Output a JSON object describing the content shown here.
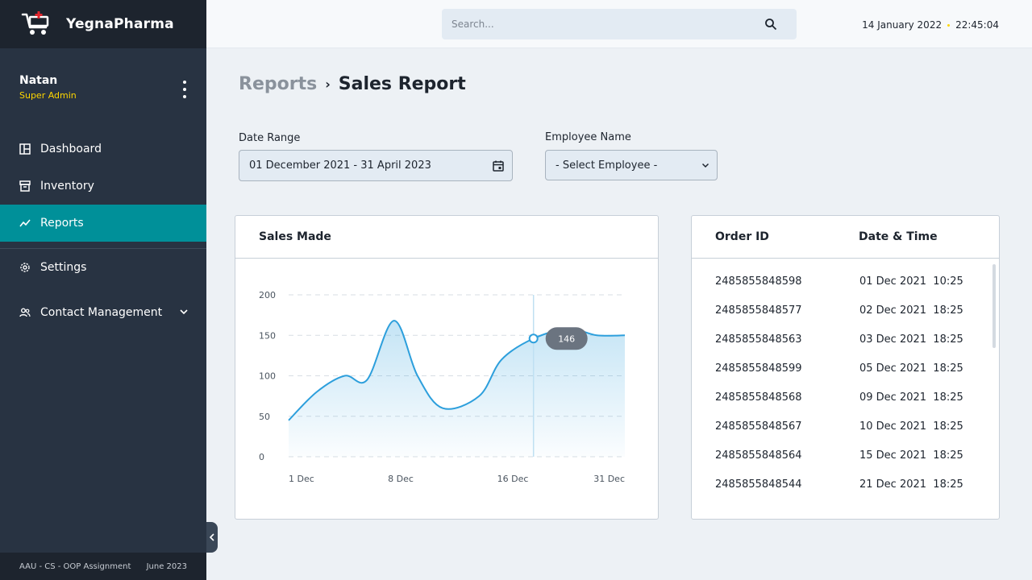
{
  "app": {
    "brand_name": "YegnaPharma",
    "accent_color": "#009099",
    "sidebar_bg": "#283342",
    "role_color": "#fed600"
  },
  "user": {
    "name": "Natan",
    "role": "Super Admin"
  },
  "sidebar": {
    "items": [
      {
        "label": "Dashboard",
        "icon": "dashboard-icon",
        "active": false
      },
      {
        "label": "Inventory",
        "icon": "inventory-icon",
        "active": false
      },
      {
        "label": "Reports",
        "icon": "reports-icon",
        "active": true
      },
      {
        "label": "Settings",
        "icon": "gear-icon",
        "active": false
      },
      {
        "label": "Contact Management",
        "icon": "users-icon",
        "active": false,
        "has_dropdown": true
      }
    ],
    "footer_left": "AAU - CS - OOP Assignment",
    "footer_right": "June 2023"
  },
  "topbar": {
    "search_placeholder": "Search...",
    "date": "14 January 2022",
    "time": "22:45:04"
  },
  "breadcrumb": {
    "parent": "Reports",
    "separator": "›",
    "current": "Sales Report"
  },
  "filters": {
    "date_range_label": "Date Range",
    "date_range_value": "01 December 2021 - 31 April 2023",
    "employee_label": "Employee Name",
    "employee_value": "- Select Employee -"
  },
  "chart_card": {
    "title": "Sales Made"
  },
  "chart_data": {
    "type": "area",
    "title": "Sales Made",
    "x_tick_labels": [
      "1 Dec",
      "8 Dec",
      "16 Dec",
      "31 Dec"
    ],
    "y_ticks": [
      0,
      50,
      100,
      150,
      200
    ],
    "ylim": [
      0,
      200
    ],
    "grid": true,
    "series": [
      {
        "x": [
          0,
          0.0833,
          0.1667,
          0.2333,
          0.3133,
          0.3833,
          0.4583,
          0.5667,
          0.6333,
          0.7283,
          0.8333,
          0.9167,
          1.0
        ],
        "values": [
          45,
          80,
          100,
          95,
          168,
          100,
          60,
          75,
          120,
          146,
          158,
          150,
          150
        ]
      }
    ],
    "highlight": {
      "x": 0.7283,
      "value": 146,
      "label": "146"
    },
    "line_color": "#2d9fdc"
  },
  "orders": {
    "headers": {
      "order_id": "Order ID",
      "date_time": "Date & Time"
    },
    "rows": [
      {
        "id": "2485855848598",
        "date": "01 Dec 2021",
        "time": "10:25"
      },
      {
        "id": "2485855848577",
        "date": "02 Dec 2021",
        "time": "18:25"
      },
      {
        "id": "2485855848563",
        "date": "03 Dec 2021",
        "time": "18:25"
      },
      {
        "id": "2485855848599",
        "date": "05 Dec 2021",
        "time": "18:25"
      },
      {
        "id": "2485855848568",
        "date": "09 Dec 2021",
        "time": "18:25"
      },
      {
        "id": "2485855848567",
        "date": "10 Dec 2021",
        "time": "18:25"
      },
      {
        "id": "2485855848564",
        "date": "15 Dec 2021",
        "time": "18:25"
      },
      {
        "id": "2485855848544",
        "date": "21 Dec 2021",
        "time": "18:25"
      }
    ]
  }
}
